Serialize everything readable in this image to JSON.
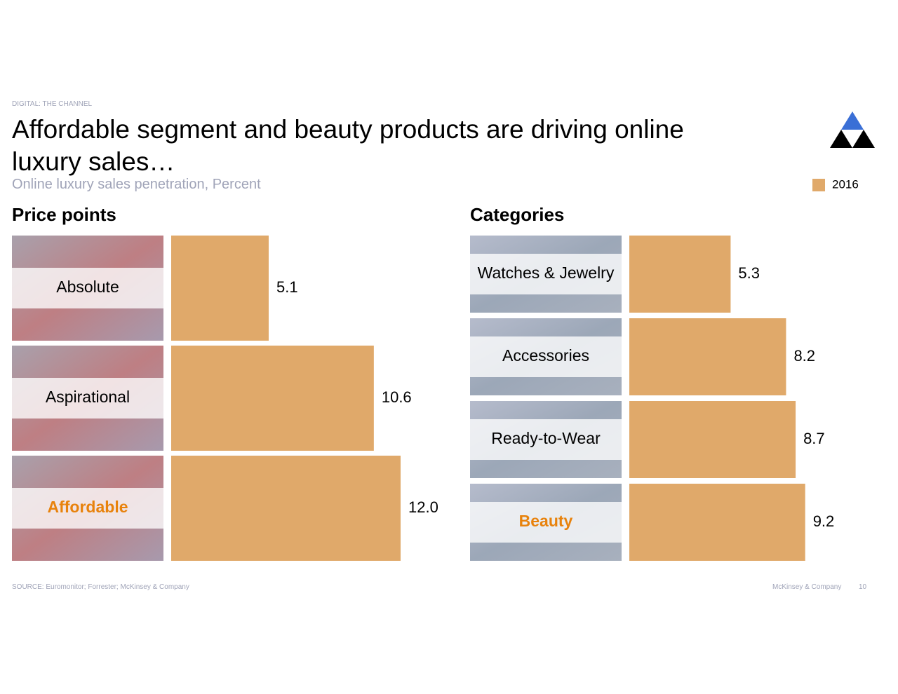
{
  "header": {
    "tag": "DIGITAL: THE CHANNEL",
    "title": "Affordable segment and beauty products are driving online luxury sales…",
    "subtitle": "Online luxury sales penetration, Percent"
  },
  "chart_data": [
    {
      "type": "bar",
      "orientation": "horizontal",
      "title": "Price points",
      "categories": [
        "Absolute",
        "Aspirational",
        "Affordable"
      ],
      "series": [
        {
          "name": "2016",
          "color": "#e0a96a",
          "values": [
            5.1,
            10.6,
            12.0
          ]
        }
      ],
      "value_labels": [
        "5.1",
        "10.6",
        "12.0"
      ],
      "highlight_index": 2,
      "highlight_color": "#e8820c",
      "legend": "top-right"
    },
    {
      "type": "bar",
      "orientation": "horizontal",
      "title": "Categories",
      "categories": [
        "Watches & Jewelry",
        "Accessories",
        "Ready-to-Wear",
        "Beauty"
      ],
      "series": [
        {
          "name": "2016",
          "color": "#e0a96a",
          "values": [
            5.3,
            8.2,
            8.7,
            9.2
          ]
        }
      ],
      "highlight_index": 3,
      "highlight_color": "#e8820c"
    }
  ],
  "footer": {
    "source": "SOURCE: Euromonitor; Forrester; McKinsey & Company",
    "company": "McKinsey & Company",
    "page": "10"
  }
}
